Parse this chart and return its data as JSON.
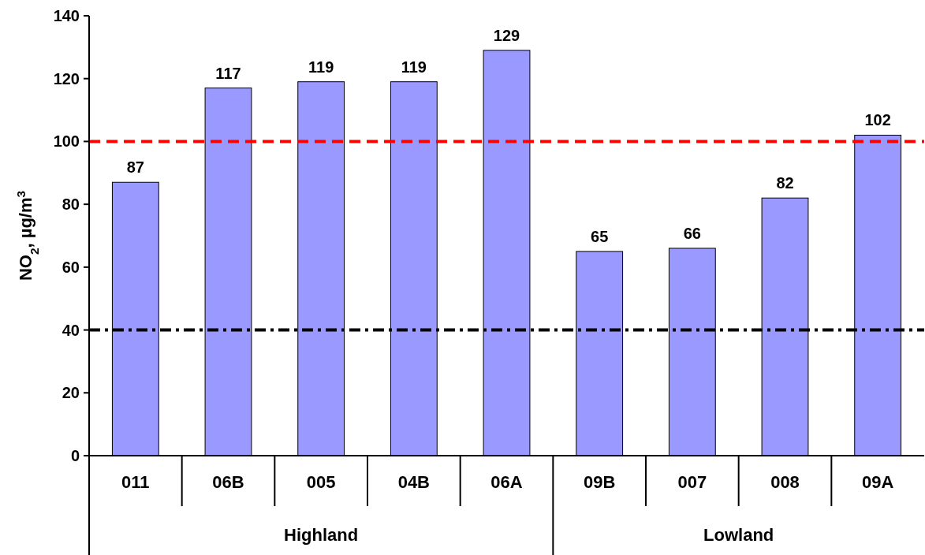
{
  "chart_data": {
    "type": "bar",
    "ylabel": "NO$_{2}$, µg/m$^{3}$",
    "categories": [
      "011",
      "06B",
      "005",
      "04B",
      "06A",
      "09B",
      "007",
      "008",
      "09A"
    ],
    "values": [
      87,
      117,
      119,
      119,
      129,
      65,
      66,
      82,
      102
    ],
    "color": "#9999ff",
    "ylim": [
      0,
      140
    ],
    "yticks": [
      0,
      20,
      40,
      60,
      80,
      100,
      120,
      140
    ],
    "data_labels": true,
    "ref_lines": [
      {
        "axis": "y",
        "value": 100,
        "color": "#ff0000",
        "line_style": "dashed"
      },
      {
        "axis": "y",
        "value": 40,
        "color": "#000000",
        "line_style": "dashdot"
      }
    ],
    "annotations": [
      "Highland",
      "Lowland"
    ]
  }
}
